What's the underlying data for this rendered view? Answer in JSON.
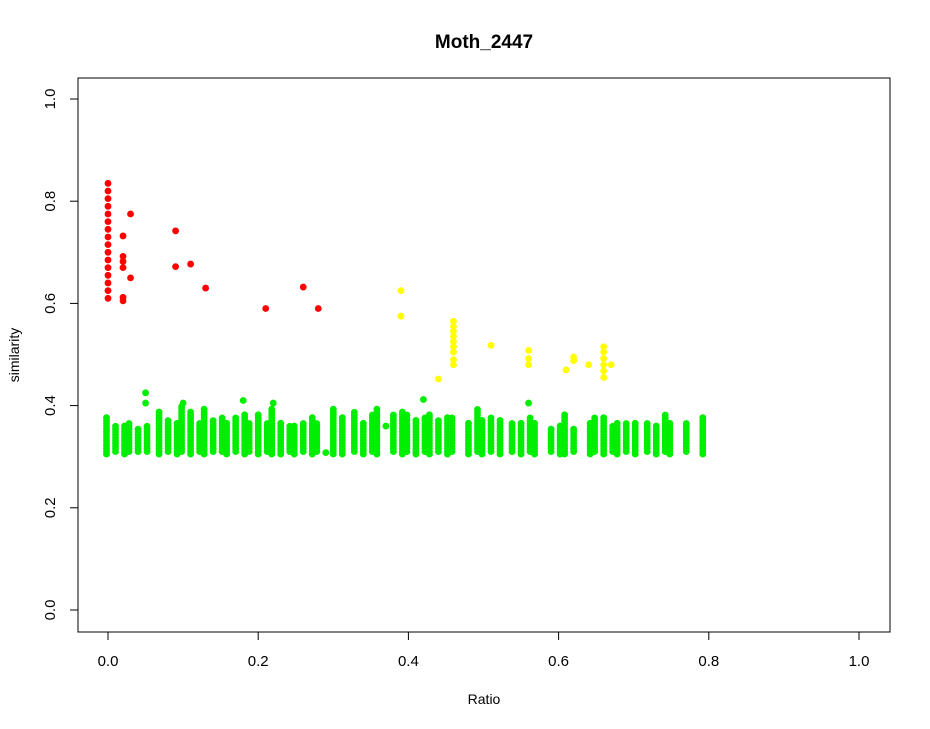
{
  "chart_data": {
    "type": "scatter",
    "title": "Moth_2447",
    "xlabel": "Ratio",
    "ylabel": "similarity",
    "xlim": [
      0,
      1
    ],
    "ylim": [
      0,
      1
    ],
    "xticks": [
      "0.0",
      "0.2",
      "0.4",
      "0.6",
      "0.8",
      "1.0"
    ],
    "yticks": [
      "0.0",
      "0.2",
      "0.4",
      "0.6",
      "0.8",
      "1.0"
    ],
    "grid": false,
    "legend": "none",
    "series": [
      {
        "color": "#ff0000",
        "points": [
          [
            0.0,
            0.61
          ],
          [
            0.0,
            0.625
          ],
          [
            0.0,
            0.64
          ],
          [
            0.0,
            0.655
          ],
          [
            0.0,
            0.67
          ],
          [
            0.0,
            0.685
          ],
          [
            0.0,
            0.7
          ],
          [
            0.0,
            0.715
          ],
          [
            0.0,
            0.73
          ],
          [
            0.0,
            0.745
          ],
          [
            0.0,
            0.76
          ],
          [
            0.0,
            0.775
          ],
          [
            0.0,
            0.79
          ],
          [
            0.0,
            0.805
          ],
          [
            0.0,
            0.82
          ],
          [
            0.0,
            0.835
          ],
          [
            0.02,
            0.605
          ],
          [
            0.02,
            0.612
          ],
          [
            0.02,
            0.67
          ],
          [
            0.02,
            0.682
          ],
          [
            0.02,
            0.692
          ],
          [
            0.02,
            0.732
          ],
          [
            0.03,
            0.65
          ],
          [
            0.03,
            0.775
          ],
          [
            0.09,
            0.672
          ],
          [
            0.09,
            0.742
          ],
          [
            0.11,
            0.677
          ],
          [
            0.13,
            0.63
          ],
          [
            0.21,
            0.59
          ],
          [
            0.26,
            0.632
          ],
          [
            0.28,
            0.59
          ]
        ]
      },
      {
        "color": "#ffff00",
        "points": [
          [
            0.39,
            0.575
          ],
          [
            0.39,
            0.625
          ],
          [
            0.44,
            0.452
          ],
          [
            0.46,
            0.48
          ],
          [
            0.46,
            0.49
          ],
          [
            0.46,
            0.505
          ],
          [
            0.46,
            0.515
          ],
          [
            0.46,
            0.525
          ],
          [
            0.46,
            0.535
          ],
          [
            0.46,
            0.545
          ],
          [
            0.46,
            0.555
          ],
          [
            0.46,
            0.565
          ],
          [
            0.51,
            0.518
          ],
          [
            0.56,
            0.48
          ],
          [
            0.56,
            0.492
          ],
          [
            0.56,
            0.508
          ],
          [
            0.61,
            0.47
          ],
          [
            0.62,
            0.488
          ],
          [
            0.62,
            0.495
          ],
          [
            0.64,
            0.48
          ],
          [
            0.66,
            0.455
          ],
          [
            0.66,
            0.468
          ],
          [
            0.66,
            0.48
          ],
          [
            0.66,
            0.492
          ],
          [
            0.66,
            0.505
          ],
          [
            0.66,
            0.515
          ],
          [
            0.67,
            0.48
          ]
        ]
      },
      {
        "color": "#00ee00",
        "x": [
          0.0,
          0.01,
          0.02,
          0.03,
          0.04,
          0.05,
          0.07,
          0.08,
          0.09,
          0.1,
          0.11,
          0.12,
          0.13,
          0.14,
          0.15,
          0.16,
          0.17,
          0.18,
          0.19,
          0.2,
          0.21,
          0.22,
          0.23,
          0.24,
          0.25,
          0.26,
          0.27,
          0.28,
          0.3,
          0.31,
          0.33,
          0.34,
          0.35,
          0.36,
          0.38,
          0.39,
          0.4,
          0.41,
          0.42,
          0.43,
          0.44,
          0.45,
          0.46,
          0.48,
          0.49,
          0.5,
          0.51,
          0.52,
          0.54,
          0.55,
          0.56,
          0.57,
          0.59,
          0.6,
          0.61,
          0.62,
          0.64,
          0.65,
          0.66,
          0.67,
          0.68,
          0.69,
          0.7,
          0.72,
          0.73,
          0.74,
          0.75,
          0.77,
          0.79
        ],
        "ymin": [
          0.305,
          0.31,
          0.305,
          0.31,
          0.31,
          0.31,
          0.305,
          0.31,
          0.305,
          0.31,
          0.305,
          0.31,
          0.305,
          0.31,
          0.31,
          0.305,
          0.31,
          0.305,
          0.31,
          0.305,
          0.31,
          0.305,
          0.305,
          0.31,
          0.305,
          0.31,
          0.305,
          0.31,
          0.305,
          0.305,
          0.31,
          0.305,
          0.31,
          0.305,
          0.31,
          0.305,
          0.31,
          0.305,
          0.31,
          0.305,
          0.31,
          0.305,
          0.31,
          0.305,
          0.31,
          0.305,
          0.31,
          0.305,
          0.31,
          0.305,
          0.31,
          0.305,
          0.31,
          0.305,
          0.305,
          0.31,
          0.305,
          0.31,
          0.305,
          0.31,
          0.305,
          0.31,
          0.305,
          0.31,
          0.305,
          0.31,
          0.305,
          0.31,
          0.305
        ],
        "ymax": [
          0.38,
          0.36,
          0.365,
          0.37,
          0.355,
          0.36,
          0.39,
          0.375,
          0.37,
          0.4,
          0.39,
          0.37,
          0.395,
          0.375,
          0.38,
          0.37,
          0.38,
          0.385,
          0.37,
          0.385,
          0.37,
          0.395,
          0.37,
          0.36,
          0.365,
          0.37,
          0.38,
          0.37,
          0.395,
          0.38,
          0.39,
          0.37,
          0.385,
          0.395,
          0.385,
          0.39,
          0.385,
          0.375,
          0.38,
          0.385,
          0.375,
          0.38,
          0.38,
          0.37,
          0.395,
          0.375,
          0.38,
          0.375,
          0.365,
          0.37,
          0.38,
          0.37,
          0.355,
          0.365,
          0.385,
          0.355,
          0.37,
          0.38,
          0.38,
          0.36,
          0.37,
          0.365,
          0.37,
          0.37,
          0.365,
          0.385,
          0.37,
          0.365,
          0.38
        ],
        "extra_points": [
          [
            0.05,
            0.405
          ],
          [
            0.05,
            0.425
          ],
          [
            0.1,
            0.405
          ],
          [
            0.18,
            0.41
          ],
          [
            0.22,
            0.405
          ],
          [
            0.42,
            0.412
          ],
          [
            0.56,
            0.405
          ],
          [
            0.29,
            0.308
          ],
          [
            0.37,
            0.36
          ]
        ]
      }
    ]
  }
}
